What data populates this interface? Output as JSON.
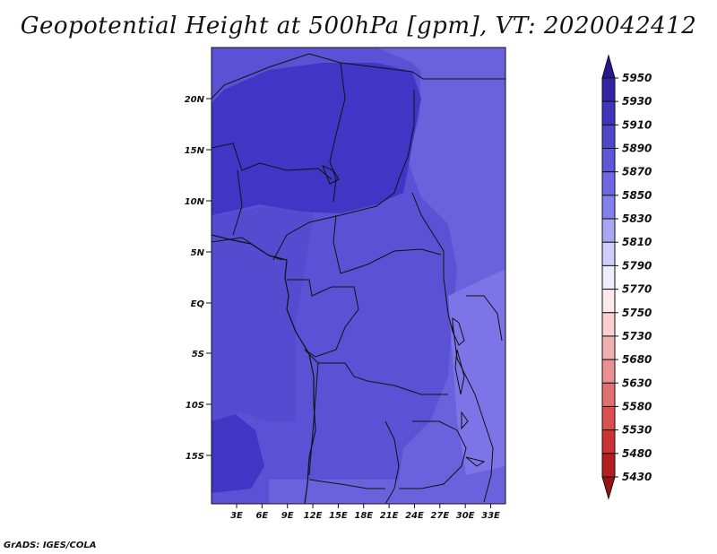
{
  "title": "Geopotential Height at 500hPa [gpm], VT: 2020042412",
  "footer": "GrADS: IGES/COLA",
  "map": {
    "lat_ticks": [
      "20N",
      "15N",
      "10N",
      "5N",
      "EQ",
      "5S",
      "10S",
      "15S"
    ],
    "lon_ticks": [
      "3E",
      "6E",
      "9E",
      "12E",
      "15E",
      "18E",
      "21E",
      "24E",
      "27E",
      "30E",
      "33E"
    ],
    "lon_range": [
      0,
      35
    ],
    "lat_range": [
      -20,
      25
    ]
  },
  "colorbar": {
    "levels": [
      "5950",
      "5930",
      "5910",
      "5890",
      "5870",
      "5850",
      "5830",
      "5810",
      "5790",
      "5770",
      "5750",
      "5730",
      "5680",
      "5630",
      "5580",
      "5530",
      "5480",
      "5430"
    ],
    "colors": [
      "#2a1890",
      "#3523a6",
      "#3f34bb",
      "#4f46cc",
      "#5e58d8",
      "#6e69e2",
      "#8480ee",
      "#a9a6f4",
      "#cfcdf9",
      "#eeedfd",
      "#fde9ea",
      "#f9cfd1",
      "#f2b0b2",
      "#ea9092",
      "#e27072",
      "#da5052",
      "#cc3234",
      "#b41e20",
      "#981414"
    ]
  },
  "colors": {
    "field_dark": "#4035c4",
    "field_mid": "#554bd0",
    "field_light": "#6a61dd",
    "field_lighter": "#7d74e8",
    "border": "#111111"
  }
}
